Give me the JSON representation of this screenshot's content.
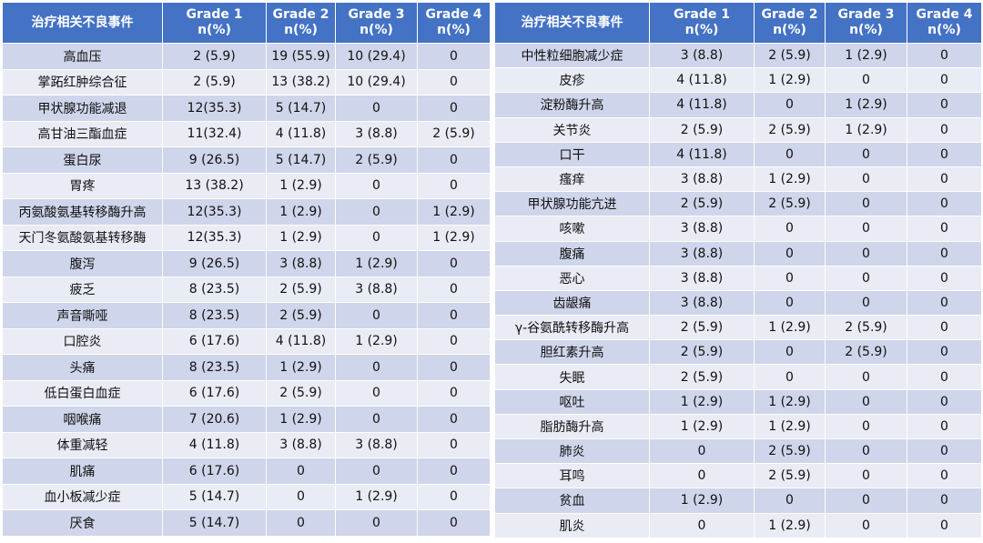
{
  "header": {
    "event": "治疗相关不良事件",
    "grade1": "Grade 1",
    "grade2": "Grade 2",
    "grade3": "Grade 3",
    "grade4": "Grade 4",
    "unit": "n(%)"
  },
  "left_rows": [
    [
      "高血压",
      "2 (5.9)",
      "19 (55.9)",
      "10 (29.4)",
      "0"
    ],
    [
      "掌跖红肿综合征",
      "2 (5.9)",
      "13 (38.2)",
      "10 (29.4)",
      "0"
    ],
    [
      "甲状腺功能减退",
      "12(35.3)",
      "5 (14.7)",
      "0",
      "0"
    ],
    [
      "高甘油三酯血症",
      "11(32.4)",
      "4 (11.8)",
      "3 (8.8)",
      "2 (5.9)"
    ],
    [
      "蛋白尿",
      "9 (26.5)",
      "5 (14.7)",
      "2 (5.9)",
      "0"
    ],
    [
      "胃疼",
      "13 (38.2)",
      "1 (2.9)",
      "0",
      "0"
    ],
    [
      "丙氨酸氨基转移酶升高",
      "12(35.3)",
      "1 (2.9)",
      "0",
      "1 (2.9)"
    ],
    [
      "天门冬氨酸氨基转移酶",
      "12(35.3)",
      "1 (2.9)",
      "0",
      "1 (2.9)"
    ],
    [
      "腹泻",
      "9 (26.5)",
      "3 (8.8)",
      "1 (2.9)",
      "0"
    ],
    [
      "疲乏",
      "8 (23.5)",
      "2 (5.9)",
      "3 (8.8)",
      "0"
    ],
    [
      "声音嘶哑",
      "8 (23.5)",
      "2 (5.9)",
      "0",
      "0"
    ],
    [
      "口腔炎",
      "6 (17.6)",
      "4 (11.8)",
      "1 (2.9)",
      "0"
    ],
    [
      "头痛",
      "8 (23.5)",
      "1 (2.9)",
      "0",
      "0"
    ],
    [
      "低白蛋白血症",
      "6 (17.6)",
      "2 (5.9)",
      "0",
      "0"
    ],
    [
      "咽喉痛",
      "7 (20.6)",
      "1 (2.9)",
      "0",
      "0"
    ],
    [
      "体重减轻",
      "4 (11.8)",
      "3 (8.8)",
      "3 (8.8)",
      "0"
    ],
    [
      "肌痛",
      "6 (17.6)",
      "0",
      "0",
      "0"
    ],
    [
      "血小板减少症",
      "5 (14.7)",
      "0",
      "1 (2.9)",
      "0"
    ],
    [
      "厌食",
      "5 (14.7)",
      "0",
      "0",
      "0"
    ]
  ],
  "right_rows": [
    [
      "中性粒细胞减少症",
      "3 (8.8)",
      "2 (5.9)",
      "1 (2.9)",
      "0"
    ],
    [
      "皮疹",
      "4 (11.8)",
      "1 (2.9)",
      "0",
      "0"
    ],
    [
      "淀粉酶升高",
      "4 (11.8)",
      "0",
      "1 (2.9)",
      "0"
    ],
    [
      "关节炎",
      "2 (5.9)",
      "2 (5.9)",
      "1 (2.9)",
      "0"
    ],
    [
      "口干",
      "4 (11.8)",
      "0",
      "0",
      "0"
    ],
    [
      "瘙痒",
      "3 (8.8)",
      "1 (2.9)",
      "0",
      "0"
    ],
    [
      "甲状腺功能亢进",
      "2 (5.9)",
      "2 (5.9)",
      "0",
      "0"
    ],
    [
      "咳嗽",
      "3 (8.8)",
      "0",
      "0",
      "0"
    ],
    [
      "腹痛",
      "3 (8.8)",
      "0",
      "0",
      "0"
    ],
    [
      "恶心",
      "3 (8.8)",
      "0",
      "0",
      "0"
    ],
    [
      "齿龈痛",
      "3 (8.8)",
      "0",
      "0",
      "0"
    ],
    [
      "γ-谷氨酰转移酶升高",
      "2 (5.9)",
      "1 (2.9)",
      "2 (5.9)",
      "0"
    ],
    [
      "胆红素升高",
      "2 (5.9)",
      "0",
      "2 (5.9)",
      "0"
    ],
    [
      "失眠",
      "2 (5.9)",
      "0",
      "0",
      "0"
    ],
    [
      "呕吐",
      "1 (2.9)",
      "1 (2.9)",
      "0",
      "0"
    ],
    [
      "脂肪酶升高",
      "1 (2.9)",
      "1 (2.9)",
      "0",
      "0"
    ],
    [
      "肺炎",
      "0",
      "2 (5.9)",
      "0",
      "0"
    ],
    [
      "耳鸣",
      "0",
      "2 (5.9)",
      "0",
      "0"
    ],
    [
      "贫血",
      "1 (2.9)",
      "0",
      "0",
      "0"
    ],
    [
      "肌炎",
      "0",
      "1 (2.9)",
      "0",
      "0"
    ]
  ]
}
